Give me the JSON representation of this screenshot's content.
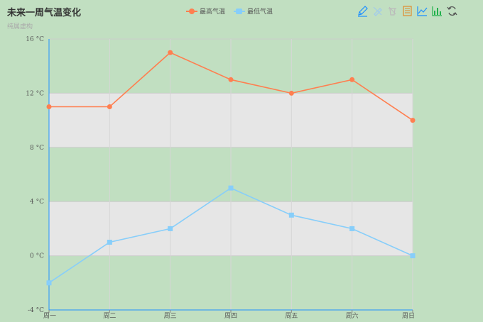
{
  "header": {
    "title": "未来一周气温变化",
    "subtitle": "纯属虚构"
  },
  "toolbox": {
    "icons": [
      "mark-icon",
      "mark-undo-icon",
      "mark-clear-icon",
      "data-view-icon",
      "line-chart-icon",
      "bar-chart-icon",
      "restore-icon"
    ],
    "color": "#1e90ff"
  },
  "chart_data": {
    "type": "line",
    "title": "未来一周气温变化",
    "subtitle": "纯属虚构",
    "categories": [
      "周一",
      "周二",
      "周三",
      "周四",
      "周五",
      "周六",
      "周日"
    ],
    "series": [
      {
        "name": "最高气温",
        "values": [
          11,
          11,
          15,
          13,
          12,
          13,
          10
        ],
        "color": "#ff7f50",
        "marker": "circle"
      },
      {
        "name": "最低气温",
        "values": [
          -2,
          1,
          2,
          5,
          3,
          2,
          0
        ],
        "color": "#87cefa",
        "marker": "square"
      }
    ],
    "ylim": [
      -4,
      16
    ],
    "yticks": [
      -4,
      0,
      4,
      8,
      12,
      16
    ],
    "yticklabels": [
      "-4 °C",
      "0 °C",
      "4 °C",
      "8 °C",
      "12 °C",
      "16 °C"
    ],
    "split_area_colors": [
      "rgba(250,250,250,0)",
      "#e6e6e6"
    ],
    "axis_color": "#1e90ff",
    "grid": true,
    "legend_position": "top-center"
  }
}
